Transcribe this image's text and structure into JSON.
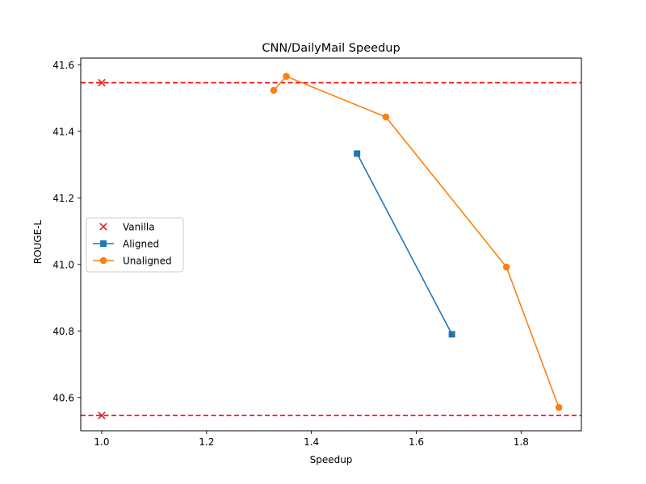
{
  "chart_data": {
    "type": "line",
    "title": "CNN/DailyMail Speedup",
    "xlabel": "Speedup",
    "ylabel": "ROUGE-L",
    "xlim": [
      0.96,
      1.915
    ],
    "ylim": [
      40.5,
      41.62
    ],
    "xticks": [
      1.0,
      1.2,
      1.4,
      1.6,
      1.8
    ],
    "xtick_labels": [
      "1.0",
      "1.2",
      "1.4",
      "1.6",
      "1.8"
    ],
    "yticks": [
      40.6,
      40.8,
      41.0,
      41.2,
      41.4,
      41.6
    ],
    "ytick_labels": [
      "40.6",
      "40.8",
      "41.0",
      "41.2",
      "41.4",
      "41.6"
    ],
    "grid": false,
    "legend_position": "center-left",
    "reference_lines": [
      {
        "y": 41.546,
        "color": "#ff0000",
        "style": "dashed"
      },
      {
        "y": 40.546,
        "color": "#ff0000",
        "style": "dashed"
      }
    ],
    "series": [
      {
        "name": "Vanilla",
        "marker": "x",
        "line": false,
        "color": "#d62728",
        "x": [
          1.0,
          1.0
        ],
        "y": [
          41.546,
          40.546
        ]
      },
      {
        "name": "Aligned",
        "marker": "s",
        "line": true,
        "color": "#1f77b4",
        "x": [
          1.487,
          1.668
        ],
        "y": [
          41.333,
          40.79
        ]
      },
      {
        "name": "Unaligned",
        "marker": "o",
        "line": true,
        "color": "#ff7f0e",
        "x": [
          1.328,
          1.352,
          1.542,
          1.772,
          1.872
        ],
        "y": [
          41.523,
          41.565,
          41.443,
          40.992,
          40.57
        ]
      }
    ]
  }
}
